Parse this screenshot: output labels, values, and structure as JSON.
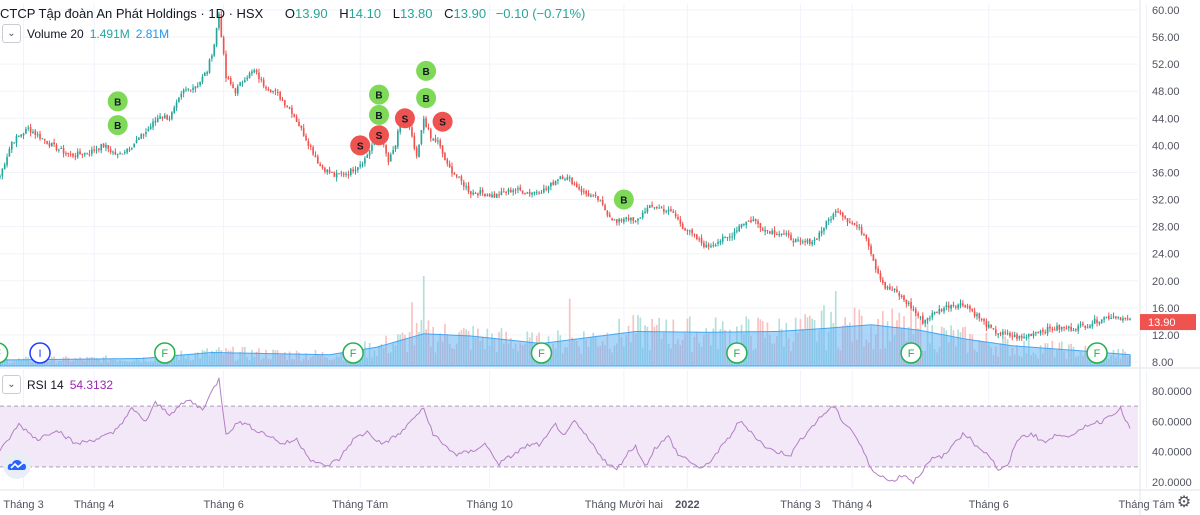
{
  "legend": {
    "title": "CTCP Tập đoàn An Phát Holdings · 1D · HSX",
    "o_label": "O",
    "o": "13.90",
    "h_label": "H",
    "h": "14.10",
    "l_label": "L",
    "l": "13.80",
    "c_label": "C",
    "c": "13.90",
    "change": "−0.10 (−0.71%)"
  },
  "volume_legend": {
    "label": "Volume 20",
    "value1": "1.491M",
    "value2": "2.81M",
    "collapse_icon": "chevron-down-icon"
  },
  "rsi_legend": {
    "label": "RSI 14",
    "value": "54.3132",
    "collapse_icon": "chevron-down-icon"
  },
  "settings_icon": "gear-icon",
  "logo_icon": "tradingview-cloud-icon",
  "colors": {
    "up": "#26a69a",
    "down": "#ef5350",
    "vol_up": "#b2dfdb",
    "vol_down": "#f9c1c0",
    "vol_ma": "#64b5f6",
    "rsi": "#b37fc6",
    "rsi_band": "#f3e8f7",
    "buy": "#7ed957",
    "sell": "#ef5350"
  },
  "chart_data": [
    {
      "type": "candlestick",
      "title": "CTCP Tập đoàn An Phát Holdings · 1D · HSX",
      "y_ticks": [
        "60.00",
        "56.00",
        "52.00",
        "48.00",
        "44.00",
        "40.00",
        "36.00",
        "32.00",
        "28.00",
        "24.00",
        "20.00",
        "16.00",
        "12.00",
        "8.00"
      ],
      "ylim": [
        8,
        61
      ],
      "x_ticks": [
        "Tháng 3",
        "Tháng 4",
        "Tháng 6",
        "Tháng Tám",
        "Tháng 10",
        "Tháng Mười hai",
        "2022",
        "Tháng 3",
        "Tháng 4",
        "Tháng 6",
        "Tháng Tám"
      ],
      "x_tick_days": [
        10,
        40,
        95,
        153,
        208,
        265,
        292,
        340,
        362,
        420,
        487
      ],
      "close_keypoints": [
        [
          0,
          35.5
        ],
        [
          5,
          40.5
        ],
        [
          12,
          42.5
        ],
        [
          22,
          40
        ],
        [
          30,
          38.5
        ],
        [
          38,
          39
        ],
        [
          44,
          40
        ],
        [
          50,
          38.5
        ],
        [
          56,
          40
        ],
        [
          62,
          42
        ],
        [
          68,
          44.5
        ],
        [
          72,
          44
        ],
        [
          78,
          48
        ],
        [
          84,
          49
        ],
        [
          88,
          51
        ],
        [
          91,
          55
        ],
        [
          93,
          59.5
        ],
        [
          96,
          50
        ],
        [
          100,
          48
        ],
        [
          104,
          50
        ],
        [
          108,
          51
        ],
        [
          112,
          49
        ],
        [
          118,
          47.5
        ],
        [
          124,
          45
        ],
        [
          130,
          41
        ],
        [
          136,
          37
        ],
        [
          142,
          35.5
        ],
        [
          148,
          36
        ],
        [
          152,
          37
        ],
        [
          155,
          38
        ],
        [
          158,
          40
        ],
        [
          162,
          41
        ],
        [
          165,
          37.5
        ],
        [
          168,
          40
        ],
        [
          170,
          43.5
        ],
        [
          174,
          42.5
        ],
        [
          177,
          38
        ],
        [
          180,
          44
        ],
        [
          183,
          41
        ],
        [
          186,
          40.5
        ],
        [
          190,
          37
        ],
        [
          195,
          35
        ],
        [
          200,
          33
        ],
        [
          205,
          33
        ],
        [
          210,
          32.5
        ],
        [
          218,
          33.5
        ],
        [
          225,
          33
        ],
        [
          232,
          33.5
        ],
        [
          238,
          35.5
        ],
        [
          242,
          35
        ],
        [
          248,
          33
        ],
        [
          254,
          32
        ],
        [
          258,
          30
        ],
        [
          262,
          28.5
        ],
        [
          266,
          29.5
        ],
        [
          270,
          28.5
        ],
        [
          274,
          30.5
        ],
        [
          278,
          31
        ],
        [
          282,
          30.5
        ],
        [
          286,
          30
        ],
        [
          290,
          28
        ],
        [
          295,
          26.5
        ],
        [
          300,
          25
        ],
        [
          306,
          26
        ],
        [
          310,
          26.5
        ],
        [
          315,
          28.5
        ],
        [
          320,
          29
        ],
        [
          325,
          27.5
        ],
        [
          332,
          27
        ],
        [
          340,
          25.5
        ],
        [
          346,
          26
        ],
        [
          352,
          29
        ],
        [
          356,
          30.5
        ],
        [
          360,
          29
        ],
        [
          364,
          28
        ],
        [
          368,
          26.5
        ],
        [
          372,
          22
        ],
        [
          376,
          19
        ],
        [
          380,
          18.5
        ],
        [
          386,
          16.5
        ],
        [
          392,
          14
        ],
        [
          398,
          15.5
        ],
        [
          404,
          16.5
        ],
        [
          410,
          16.5
        ],
        [
          416,
          14.5
        ],
        [
          422,
          12.5
        ],
        [
          428,
          12
        ],
        [
          434,
          11.5
        ],
        [
          440,
          12.5
        ],
        [
          448,
          13
        ],
        [
          456,
          13
        ],
        [
          462,
          13.5
        ],
        [
          468,
          14.5
        ],
        [
          474,
          14.8
        ],
        [
          480,
          14
        ]
      ],
      "signals": [
        {
          "day": 50,
          "price": 46.5,
          "label": "B",
          "kind": "buy"
        },
        {
          "day": 50,
          "price": 43.0,
          "label": "B",
          "kind": "buy"
        },
        {
          "day": 153,
          "price": 40.0,
          "label": "S",
          "kind": "sell"
        },
        {
          "day": 161,
          "price": 41.5,
          "label": "S",
          "kind": "sell"
        },
        {
          "day": 161,
          "price": 47.5,
          "label": "B",
          "kind": "buy"
        },
        {
          "day": 161,
          "price": 44.5,
          "label": "B",
          "kind": "buy"
        },
        {
          "day": 172,
          "price": 44.0,
          "label": "S",
          "kind": "sell"
        },
        {
          "day": 181,
          "price": 51.0,
          "label": "B",
          "kind": "buy"
        },
        {
          "day": 181,
          "price": 47.0,
          "label": "B",
          "kind": "buy"
        },
        {
          "day": 188,
          "price": 43.5,
          "label": "S",
          "kind": "sell"
        },
        {
          "day": 265,
          "price": 32.0,
          "label": "B",
          "kind": "buy"
        }
      ],
      "events": [
        {
          "day": -1,
          "label": "F"
        },
        {
          "day": 17,
          "label": "I"
        },
        {
          "day": 70,
          "label": "F"
        },
        {
          "day": 150,
          "label": "F"
        },
        {
          "day": 230,
          "label": "F"
        },
        {
          "day": 313,
          "label": "F"
        },
        {
          "day": 387,
          "label": "F"
        },
        {
          "day": 466,
          "label": "F"
        }
      ]
    },
    {
      "type": "bar",
      "title": "Volume 20",
      "note": "volume bars with 20-period moving average (area)",
      "volume_ma_keypoints": [
        [
          0,
          0.8
        ],
        [
          60,
          1.0
        ],
        [
          90,
          1.8
        ],
        [
          140,
          1.5
        ],
        [
          160,
          2.5
        ],
        [
          180,
          4.3
        ],
        [
          200,
          4.0
        ],
        [
          230,
          3.0
        ],
        [
          250,
          3.8
        ],
        [
          270,
          4.6
        ],
        [
          300,
          4.5
        ],
        [
          330,
          4.6
        ],
        [
          350,
          5.0
        ],
        [
          370,
          5.5
        ],
        [
          390,
          4.8
        ],
        [
          410,
          3.6
        ],
        [
          430,
          2.7
        ],
        [
          460,
          2.0
        ],
        [
          480,
          1.5
        ]
      ],
      "volume_spikes": [
        [
          175,
          8.5
        ],
        [
          180,
          12.0
        ],
        [
          242,
          9.0
        ],
        [
          283,
          6.2
        ],
        [
          350,
          8.1
        ],
        [
          355,
          10.0
        ],
        [
          360,
          5.5
        ],
        [
          366,
          6.7
        ]
      ]
    },
    {
      "type": "line",
      "title": "RSI 14",
      "y_ticks": [
        "80.0000",
        "60.0000",
        "40.0000",
        "20.0000"
      ],
      "ylim": [
        15,
        90
      ],
      "band": [
        30,
        70
      ],
      "keypoints": [
        [
          0,
          40
        ],
        [
          8,
          58
        ],
        [
          16,
          48
        ],
        [
          24,
          55
        ],
        [
          32,
          45
        ],
        [
          40,
          48
        ],
        [
          48,
          52
        ],
        [
          56,
          68
        ],
        [
          62,
          60
        ],
        [
          66,
          72
        ],
        [
          72,
          65
        ],
        [
          80,
          74
        ],
        [
          86,
          68
        ],
        [
          93,
          88
        ],
        [
          96,
          52
        ],
        [
          102,
          60
        ],
        [
          108,
          55
        ],
        [
          115,
          50
        ],
        [
          120,
          45
        ],
        [
          126,
          48
        ],
        [
          132,
          35
        ],
        [
          138,
          30
        ],
        [
          144,
          35
        ],
        [
          150,
          48
        ],
        [
          156,
          53
        ],
        [
          162,
          45
        ],
        [
          168,
          50
        ],
        [
          172,
          55
        ],
        [
          176,
          63
        ],
        [
          180,
          68
        ],
        [
          184,
          52
        ],
        [
          188,
          45
        ],
        [
          194,
          38
        ],
        [
          200,
          40
        ],
        [
          206,
          45
        ],
        [
          212,
          32
        ],
        [
          218,
          38
        ],
        [
          224,
          44
        ],
        [
          230,
          45
        ],
        [
          236,
          58
        ],
        [
          240,
          50
        ],
        [
          244,
          60
        ],
        [
          248,
          52
        ],
        [
          254,
          40
        ],
        [
          258,
          32
        ],
        [
          262,
          28
        ],
        [
          266,
          38
        ],
        [
          270,
          44
        ],
        [
          274,
          30
        ],
        [
          278,
          42
        ],
        [
          284,
          50
        ],
        [
          288,
          38
        ],
        [
          292,
          35
        ],
        [
          298,
          28
        ],
        [
          304,
          38
        ],
        [
          310,
          50
        ],
        [
          314,
          60
        ],
        [
          318,
          55
        ],
        [
          322,
          48
        ],
        [
          326,
          42
        ],
        [
          330,
          40
        ],
        [
          336,
          38
        ],
        [
          340,
          48
        ],
        [
          344,
          55
        ],
        [
          350,
          65
        ],
        [
          354,
          70
        ],
        [
          358,
          60
        ],
        [
          362,
          54
        ],
        [
          366,
          43
        ],
        [
          370,
          28
        ],
        [
          374,
          25
        ],
        [
          378,
          20
        ],
        [
          384,
          25
        ],
        [
          388,
          20
        ],
        [
          392,
          28
        ],
        [
          396,
          35
        ],
        [
          402,
          38
        ],
        [
          406,
          48
        ],
        [
          410,
          52
        ],
        [
          414,
          45
        ],
        [
          420,
          38
        ],
        [
          424,
          28
        ],
        [
          428,
          30
        ],
        [
          432,
          48
        ],
        [
          438,
          52
        ],
        [
          444,
          46
        ],
        [
          450,
          52
        ],
        [
          456,
          50
        ],
        [
          462,
          58
        ],
        [
          468,
          60
        ],
        [
          472,
          65
        ],
        [
          476,
          68
        ],
        [
          480,
          55
        ]
      ],
      "last_value": "54.3132"
    }
  ]
}
